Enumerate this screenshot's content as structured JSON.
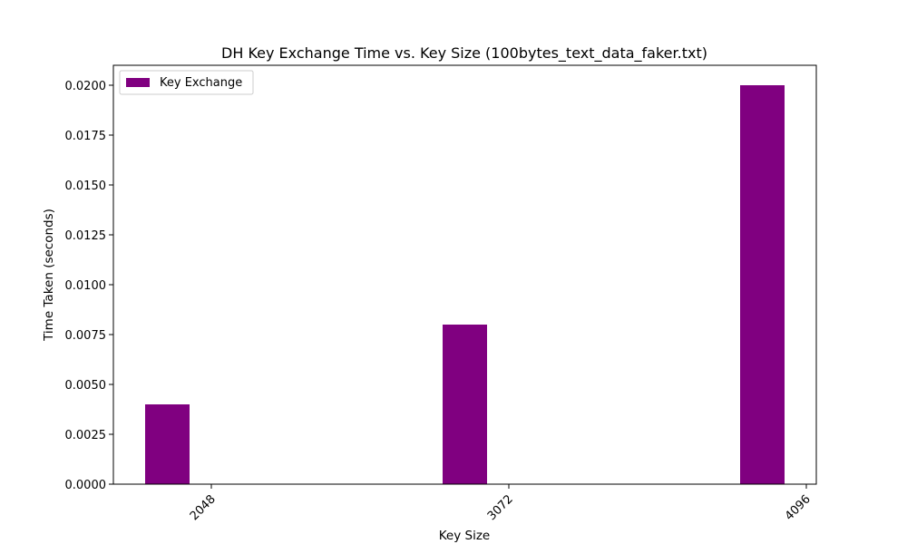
{
  "chart_data": {
    "type": "bar",
    "title": "DH Key Exchange Time vs. Key Size (100bytes_text_data_faker.txt)",
    "xlabel": "Key Size",
    "ylabel": "Time Taken (seconds)",
    "categories": [
      "2048",
      "3072",
      "4096"
    ],
    "series": [
      {
        "name": "Key Exchange",
        "values": [
          0.004,
          0.008,
          0.02
        ],
        "color": "#800080"
      }
    ],
    "yticks": [
      "0.0000",
      "0.0025",
      "0.0050",
      "0.0075",
      "0.0100",
      "0.0125",
      "0.0150",
      "0.0175",
      "0.0200"
    ],
    "ylim": [
      0,
      0.021
    ],
    "legend_position": "top-left",
    "grid": false
  }
}
